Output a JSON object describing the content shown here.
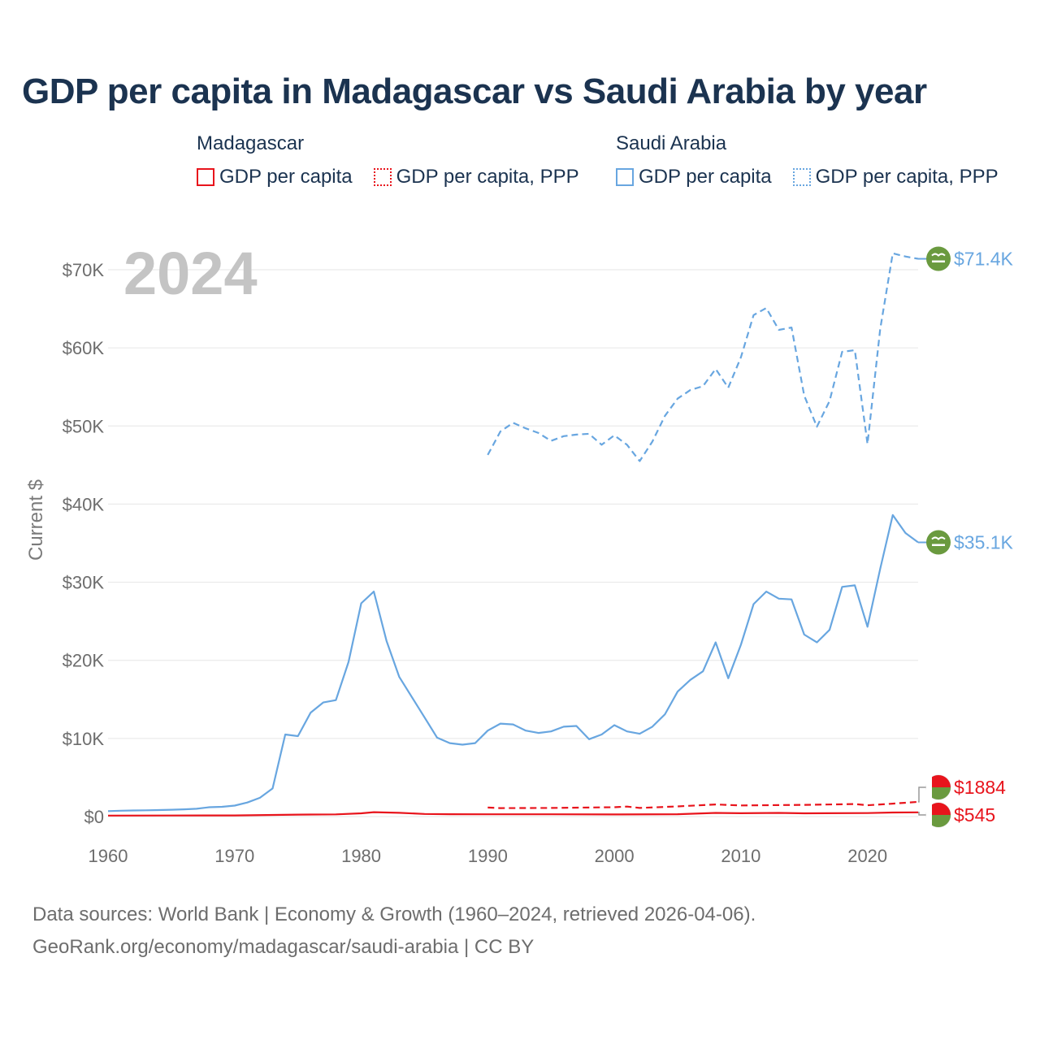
{
  "colors": {
    "madagascar": "#e8141c",
    "saudi": "#68a6e0",
    "title": "#1b3350",
    "grid": "#e6e6e6",
    "flag_green": "#6a9a3f"
  },
  "legend": {
    "groups": [
      {
        "name": "Madagascar",
        "items": [
          {
            "label": "GDP per capita",
            "style": "solid"
          },
          {
            "label": "GDP per capita, PPP",
            "style": "dotted"
          }
        ]
      },
      {
        "name": "Saudi Arabia",
        "items": [
          {
            "label": "GDP per capita",
            "style": "solid"
          },
          {
            "label": "GDP per capita, PPP",
            "style": "dotted"
          }
        ]
      }
    ]
  },
  "footer": {
    "line1": "Data sources: World Bank | Economy & Growth (1960–2024, retrieved 2026-04-06).",
    "line2": "GeoRank.org/economy/madagascar/saudi-arabia | CC BY"
  },
  "chart_data": {
    "type": "line",
    "title": "GDP per capita in Madagascar vs Saudi Arabia by year",
    "year_label": "2024",
    "xlabel": "",
    "ylabel": "Current $",
    "xlim": [
      1960,
      2024
    ],
    "ylim": [
      0,
      70000
    ],
    "x_ticks": [
      1960,
      1970,
      1980,
      1990,
      2000,
      2010,
      2020
    ],
    "y_ticks": [
      {
        "value": 0,
        "label": "$0"
      },
      {
        "value": 10000,
        "label": "$10K"
      },
      {
        "value": 20000,
        "label": "$20K"
      },
      {
        "value": 30000,
        "label": "$30K"
      },
      {
        "value": 40000,
        "label": "$40K"
      },
      {
        "value": 50000,
        "label": "$50K"
      },
      {
        "value": 60000,
        "label": "$60K"
      },
      {
        "value": 70000,
        "label": "$70K"
      }
    ],
    "grid": true,
    "series": [
      {
        "name": "Saudi Arabia GDP per capita",
        "country": "saudi",
        "dash": "solid",
        "end_label": "$35.1K",
        "x": [
          1960,
          1961,
          1962,
          1963,
          1964,
          1965,
          1966,
          1967,
          1968,
          1969,
          1970,
          1971,
          1972,
          1973,
          1974,
          1975,
          1976,
          1977,
          1978,
          1979,
          1980,
          1981,
          1982,
          1983,
          1984,
          1985,
          1986,
          1987,
          1988,
          1989,
          1990,
          1991,
          1992,
          1993,
          1994,
          1995,
          1996,
          1997,
          1998,
          1999,
          2000,
          2001,
          2002,
          2003,
          2004,
          2005,
          2006,
          2007,
          2008,
          2009,
          2010,
          2011,
          2012,
          2013,
          2014,
          2015,
          2016,
          2017,
          2018,
          2019,
          2020,
          2021,
          2022,
          2023,
          2024
        ],
        "values": [
          700,
          750,
          780,
          800,
          830,
          870,
          930,
          1000,
          1200,
          1250,
          1400,
          1800,
          2400,
          3600,
          10500,
          10300,
          13300,
          14600,
          14900,
          19800,
          27300,
          28800,
          22500,
          17900,
          15300,
          12700,
          10100,
          9400,
          9200,
          9400,
          11000,
          11900,
          11800,
          11000,
          10700,
          10900,
          11500,
          11600,
          9900,
          10500,
          11700,
          10900,
          10600,
          11500,
          13100,
          16000,
          17500,
          18600,
          22300,
          17700,
          22000,
          27200,
          28800,
          27900,
          27800,
          23300,
          22300,
          23900,
          29400,
          29600,
          24300,
          31700,
          38600,
          36300,
          35100
        ]
      },
      {
        "name": "Saudi Arabia GDP per capita, PPP",
        "country": "saudi",
        "dash": "dashed",
        "end_label": "$71.4K",
        "x": [
          1990,
          1991,
          1992,
          1993,
          1994,
          1995,
          1996,
          1997,
          1998,
          1999,
          2000,
          2001,
          2002,
          2003,
          2004,
          2005,
          2006,
          2007,
          2008,
          2009,
          2010,
          2011,
          2012,
          2013,
          2014,
          2015,
          2016,
          2017,
          2018,
          2019,
          2020,
          2021,
          2022,
          2023,
          2024
        ],
        "values": [
          46300,
          49300,
          50400,
          49700,
          49100,
          48100,
          48700,
          48900,
          49000,
          47600,
          48800,
          47600,
          45500,
          48000,
          51300,
          53500,
          54600,
          55100,
          57300,
          54900,
          58800,
          64200,
          65100,
          62300,
          62600,
          53900,
          49900,
          53200,
          59500,
          59700,
          47700,
          62400,
          72100,
          71700,
          71400
        ]
      },
      {
        "name": "Madagascar GDP per capita",
        "country": "madagascar",
        "dash": "solid",
        "end_label": "$545",
        "x": [
          1960,
          1965,
          1970,
          1975,
          1978,
          1980,
          1981,
          1983,
          1985,
          1987,
          1990,
          1995,
          2000,
          2005,
          2008,
          2010,
          2013,
          2015,
          2020,
          2022,
          2024
        ],
        "values": [
          130,
          140,
          150,
          250,
          280,
          420,
          560,
          480,
          330,
          300,
          290,
          290,
          270,
          300,
          470,
          430,
          470,
          420,
          450,
          520,
          545
        ]
      },
      {
        "name": "Madagascar GDP per capita, PPP",
        "country": "madagascar",
        "dash": "dashed",
        "end_label": "$1884",
        "x": [
          1990,
          1991,
          1995,
          2000,
          2001,
          2002,
          2005,
          2008,
          2010,
          2015,
          2019,
          2020,
          2022,
          2024
        ],
        "values": [
          1150,
          1080,
          1100,
          1200,
          1280,
          1100,
          1300,
          1550,
          1420,
          1500,
          1600,
          1450,
          1650,
          1884
        ]
      }
    ]
  }
}
